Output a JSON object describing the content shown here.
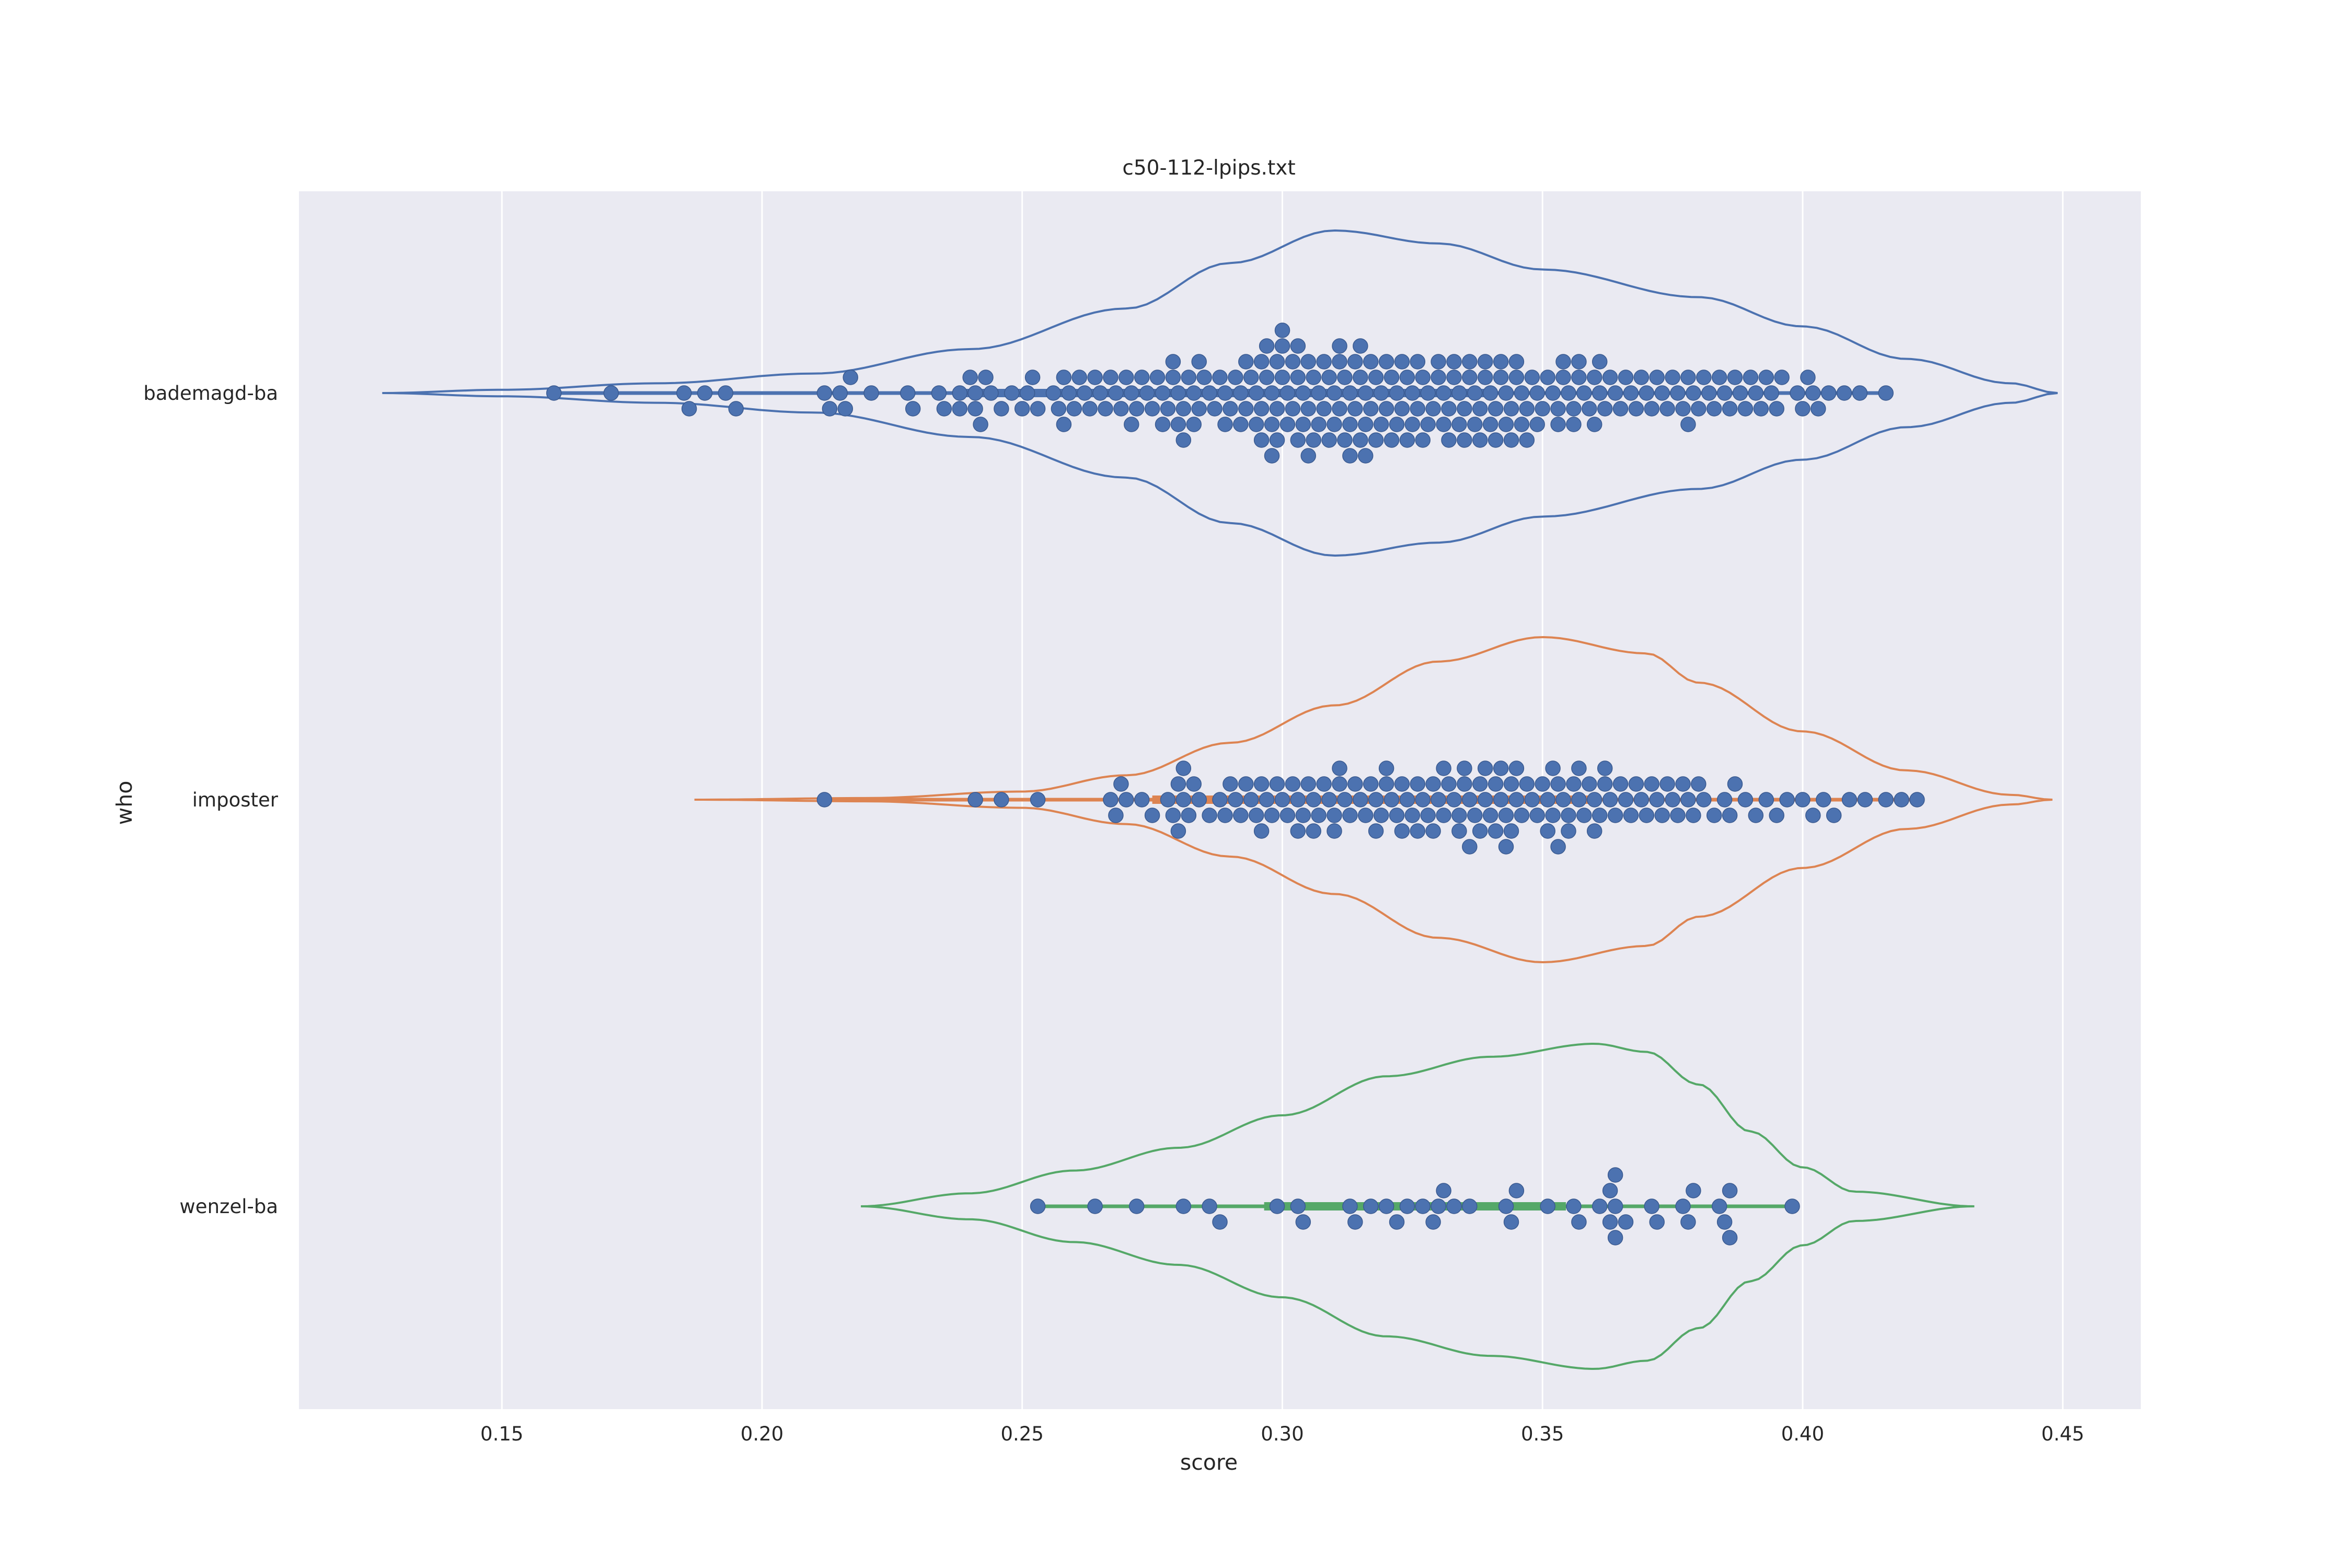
{
  "chart_data": {
    "type": "violin-swarm",
    "title": "c50-112-lpips.txt",
    "xlabel": "score",
    "ylabel": "who",
    "xlim": [
      0.111,
      0.465
    ],
    "xticks": [
      "0.15",
      "0.20",
      "0.25",
      "0.30",
      "0.35",
      "0.40",
      "0.45"
    ],
    "xtick_values": [
      0.15,
      0.2,
      0.25,
      0.3,
      0.35,
      0.4,
      0.45
    ],
    "grid": true,
    "categories": [
      "bademagd-ba",
      "imposter",
      "wenzel-ba"
    ],
    "colors": {
      "background": "#eaeaf2",
      "grid": "#ffffff",
      "points": "#4c72b0",
      "points_edge": "#3a5a90",
      "violins": [
        "#4c72b0",
        "#dd8452",
        "#55a868"
      ]
    },
    "series": [
      {
        "name": "bademagd-ba",
        "violin_range": [
          0.127,
          0.449
        ],
        "violin_mode": 0.31,
        "violin_profile": [
          [
            0.127,
            0.0
          ],
          [
            0.15,
            0.02
          ],
          [
            0.18,
            0.06
          ],
          [
            0.21,
            0.12
          ],
          [
            0.24,
            0.27
          ],
          [
            0.27,
            0.52
          ],
          [
            0.29,
            0.8
          ],
          [
            0.31,
            1.0
          ],
          [
            0.33,
            0.92
          ],
          [
            0.35,
            0.76
          ],
          [
            0.38,
            0.59
          ],
          [
            0.4,
            0.41
          ],
          [
            0.42,
            0.21
          ],
          [
            0.44,
            0.06
          ],
          [
            0.449,
            0.0
          ]
        ],
        "points": [
          0.16,
          0.171,
          0.185,
          0.186,
          0.189,
          0.193,
          0.195,
          0.212,
          0.213,
          0.215,
          0.216,
          0.217,
          0.221,
          0.228,
          0.229,
          0.234,
          0.235,
          0.238,
          0.238,
          0.24,
          0.241,
          0.241,
          0.242,
          0.243,
          0.244,
          0.246,
          0.248,
          0.25,
          0.251,
          0.252,
          0.253,
          0.256,
          0.257,
          0.258,
          0.258,
          0.259,
          0.26,
          0.261,
          0.262,
          0.263,
          0.264,
          0.265,
          0.266,
          0.267,
          0.268,
          0.269,
          0.27,
          0.271,
          0.271,
          0.272,
          0.273,
          0.274,
          0.275,
          0.276,
          0.277,
          0.277,
          0.278,
          0.279,
          0.279,
          0.28,
          0.28,
          0.281,
          0.281,
          0.282,
          0.283,
          0.283,
          0.284,
          0.284,
          0.285,
          0.286,
          0.287,
          0.288,
          0.289,
          0.289,
          0.29,
          0.291,
          0.292,
          0.292,
          0.293,
          0.293,
          0.294,
          0.295,
          0.295,
          0.296,
          0.296,
          0.296,
          0.297,
          0.297,
          0.298,
          0.298,
          0.298,
          0.299,
          0.299,
          0.299,
          0.3,
          0.3,
          0.3,
          0.301,
          0.301,
          0.302,
          0.302,
          0.303,
          0.303,
          0.303,
          0.304,
          0.304,
          0.305,
          0.305,
          0.305,
          0.306,
          0.306,
          0.307,
          0.307,
          0.308,
          0.308,
          0.309,
          0.309,
          0.31,
          0.31,
          0.311,
          0.311,
          0.311,
          0.312,
          0.312,
          0.313,
          0.313,
          0.313,
          0.314,
          0.314,
          0.315,
          0.315,
          0.315,
          0.316,
          0.316,
          0.316,
          0.317,
          0.317,
          0.318,
          0.318,
          0.319,
          0.319,
          0.32,
          0.32,
          0.321,
          0.321,
          0.322,
          0.322,
          0.323,
          0.323,
          0.324,
          0.324,
          0.325,
          0.325,
          0.326,
          0.326,
          0.327,
          0.327,
          0.328,
          0.328,
          0.329,
          0.33,
          0.33,
          0.331,
          0.331,
          0.332,
          0.332,
          0.333,
          0.333,
          0.334,
          0.334,
          0.335,
          0.335,
          0.336,
          0.336,
          0.337,
          0.337,
          0.338,
          0.338,
          0.339,
          0.339,
          0.34,
          0.34,
          0.341,
          0.341,
          0.342,
          0.342,
          0.343,
          0.343,
          0.344,
          0.344,
          0.345,
          0.345,
          0.346,
          0.346,
          0.347,
          0.347,
          0.348,
          0.349,
          0.349,
          0.35,
          0.351,
          0.352,
          0.353,
          0.353,
          0.354,
          0.354,
          0.355,
          0.356,
          0.356,
          0.357,
          0.357,
          0.358,
          0.359,
          0.36,
          0.36,
          0.361,
          0.361,
          0.362,
          0.363,
          0.364,
          0.365,
          0.366,
          0.367,
          0.368,
          0.369,
          0.37,
          0.371,
          0.372,
          0.373,
          0.374,
          0.375,
          0.376,
          0.377,
          0.378,
          0.378,
          0.379,
          0.38,
          0.381,
          0.382,
          0.383,
          0.384,
          0.385,
          0.386,
          0.387,
          0.388,
          0.389,
          0.39,
          0.391,
          0.392,
          0.393,
          0.394,
          0.395,
          0.396,
          0.399,
          0.4,
          0.401,
          0.402,
          0.403,
          0.405,
          0.408,
          0.411,
          0.416
        ]
      },
      {
        "name": "imposter",
        "violin_range": [
          0.187,
          0.448
        ],
        "violin_mode": 0.35,
        "violin_profile": [
          [
            0.187,
            0.0
          ],
          [
            0.22,
            0.01
          ],
          [
            0.25,
            0.05
          ],
          [
            0.27,
            0.15
          ],
          [
            0.29,
            0.35
          ],
          [
            0.31,
            0.58
          ],
          [
            0.33,
            0.85
          ],
          [
            0.35,
            1.0
          ],
          [
            0.37,
            0.9
          ],
          [
            0.38,
            0.72
          ],
          [
            0.4,
            0.42
          ],
          [
            0.42,
            0.18
          ],
          [
            0.44,
            0.03
          ],
          [
            0.448,
            0.0
          ]
        ],
        "points": [
          0.212,
          0.241,
          0.246,
          0.253,
          0.267,
          0.268,
          0.269,
          0.27,
          0.273,
          0.275,
          0.278,
          0.279,
          0.28,
          0.28,
          0.281,
          0.281,
          0.282,
          0.283,
          0.284,
          0.286,
          0.288,
          0.289,
          0.29,
          0.291,
          0.292,
          0.293,
          0.294,
          0.295,
          0.296,
          0.296,
          0.297,
          0.298,
          0.299,
          0.3,
          0.301,
          0.302,
          0.303,
          0.303,
          0.304,
          0.305,
          0.306,
          0.306,
          0.307,
          0.308,
          0.309,
          0.31,
          0.31,
          0.311,
          0.311,
          0.312,
          0.313,
          0.314,
          0.315,
          0.316,
          0.317,
          0.318,
          0.318,
          0.319,
          0.32,
          0.32,
          0.321,
          0.322,
          0.323,
          0.323,
          0.324,
          0.325,
          0.326,
          0.326,
          0.327,
          0.328,
          0.329,
          0.329,
          0.33,
          0.331,
          0.331,
          0.332,
          0.333,
          0.334,
          0.334,
          0.335,
          0.335,
          0.336,
          0.336,
          0.337,
          0.338,
          0.338,
          0.339,
          0.339,
          0.34,
          0.341,
          0.341,
          0.342,
          0.342,
          0.343,
          0.343,
          0.344,
          0.344,
          0.345,
          0.345,
          0.346,
          0.347,
          0.348,
          0.349,
          0.35,
          0.351,
          0.351,
          0.352,
          0.352,
          0.353,
          0.353,
          0.354,
          0.355,
          0.355,
          0.356,
          0.357,
          0.357,
          0.358,
          0.359,
          0.36,
          0.36,
          0.361,
          0.362,
          0.362,
          0.363,
          0.364,
          0.365,
          0.366,
          0.367,
          0.368,
          0.369,
          0.37,
          0.371,
          0.372,
          0.373,
          0.374,
          0.375,
          0.376,
          0.377,
          0.378,
          0.379,
          0.38,
          0.381,
          0.383,
          0.385,
          0.386,
          0.387,
          0.389,
          0.391,
          0.393,
          0.395,
          0.397,
          0.4,
          0.402,
          0.404,
          0.406,
          0.409,
          0.412,
          0.416,
          0.419,
          0.422
        ]
      },
      {
        "name": "wenzel-ba",
        "violin_range": [
          0.219,
          0.433
        ],
        "violin_mode": 0.36,
        "violin_profile": [
          [
            0.219,
            0.0
          ],
          [
            0.24,
            0.08
          ],
          [
            0.26,
            0.22
          ],
          [
            0.28,
            0.36
          ],
          [
            0.3,
            0.56
          ],
          [
            0.32,
            0.8
          ],
          [
            0.34,
            0.92
          ],
          [
            0.36,
            1.0
          ],
          [
            0.37,
            0.95
          ],
          [
            0.38,
            0.75
          ],
          [
            0.39,
            0.46
          ],
          [
            0.4,
            0.24
          ],
          [
            0.41,
            0.09
          ],
          [
            0.433,
            0.0
          ]
        ],
        "points": [
          0.253,
          0.264,
          0.272,
          0.281,
          0.286,
          0.288,
          0.299,
          0.303,
          0.304,
          0.313,
          0.314,
          0.317,
          0.32,
          0.322,
          0.324,
          0.327,
          0.329,
          0.33,
          0.331,
          0.333,
          0.336,
          0.343,
          0.344,
          0.345,
          0.351,
          0.356,
          0.357,
          0.361,
          0.363,
          0.363,
          0.364,
          0.364,
          0.364,
          0.366,
          0.371,
          0.372,
          0.377,
          0.378,
          0.379,
          0.384,
          0.385,
          0.386,
          0.386,
          0.398
        ]
      }
    ]
  }
}
